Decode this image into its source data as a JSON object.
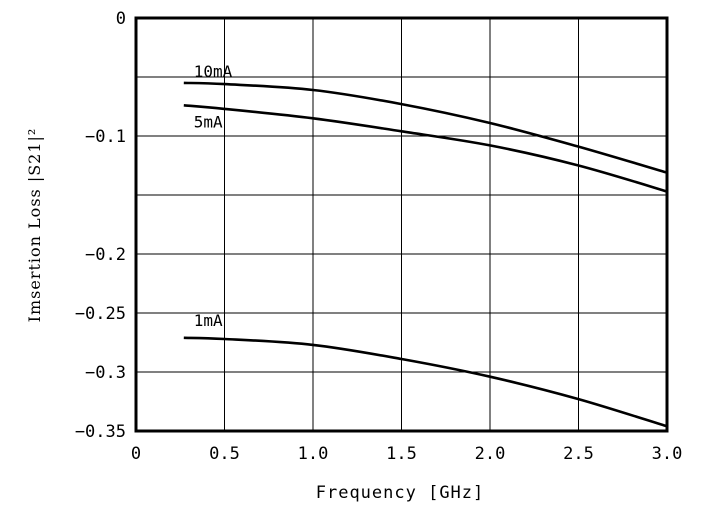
{
  "chart_data": {
    "type": "line",
    "xlabel": "Frequency [GHz]",
    "ylabel": "Imsertion Loss |S21|²",
    "xlim": [
      0,
      3.0
    ],
    "ylim": [
      -0.35,
      0
    ],
    "x_ticks": [
      "0",
      "0.5",
      "1.0",
      "1.5",
      "2.0",
      "2.5",
      "3.0"
    ],
    "x_tick_values": [
      0,
      0.5,
      1.0,
      1.5,
      2.0,
      2.5,
      3.0
    ],
    "y_ticks": [
      "0",
      "−0.1",
      "−0.2",
      "−0.25",
      "−0.3",
      "−0.35"
    ],
    "y_tick_values": [
      0,
      -0.1,
      -0.2,
      -0.25,
      -0.3,
      -0.35
    ],
    "y_gridlines": [
      0,
      -0.05,
      -0.1,
      -0.15,
      -0.2,
      -0.25,
      -0.3,
      -0.35
    ],
    "grid": true,
    "series": [
      {
        "name": "10mA",
        "x": [
          0.27,
          0.5,
          1.0,
          1.5,
          2.0,
          2.5,
          3.0
        ],
        "y": [
          -0.055,
          -0.056,
          -0.061,
          -0.073,
          -0.089,
          -0.109,
          -0.131
        ]
      },
      {
        "name": "5mA",
        "x": [
          0.27,
          0.5,
          1.0,
          1.5,
          2.0,
          2.5,
          3.0
        ],
        "y": [
          -0.074,
          -0.077,
          -0.085,
          -0.096,
          -0.108,
          -0.125,
          -0.147
        ]
      },
      {
        "name": "1mA",
        "x": [
          0.27,
          0.5,
          1.0,
          1.5,
          2.0,
          2.5,
          3.0
        ],
        "y": [
          -0.271,
          -0.272,
          -0.277,
          -0.289,
          -0.304,
          -0.323,
          -0.346
        ]
      }
    ]
  }
}
